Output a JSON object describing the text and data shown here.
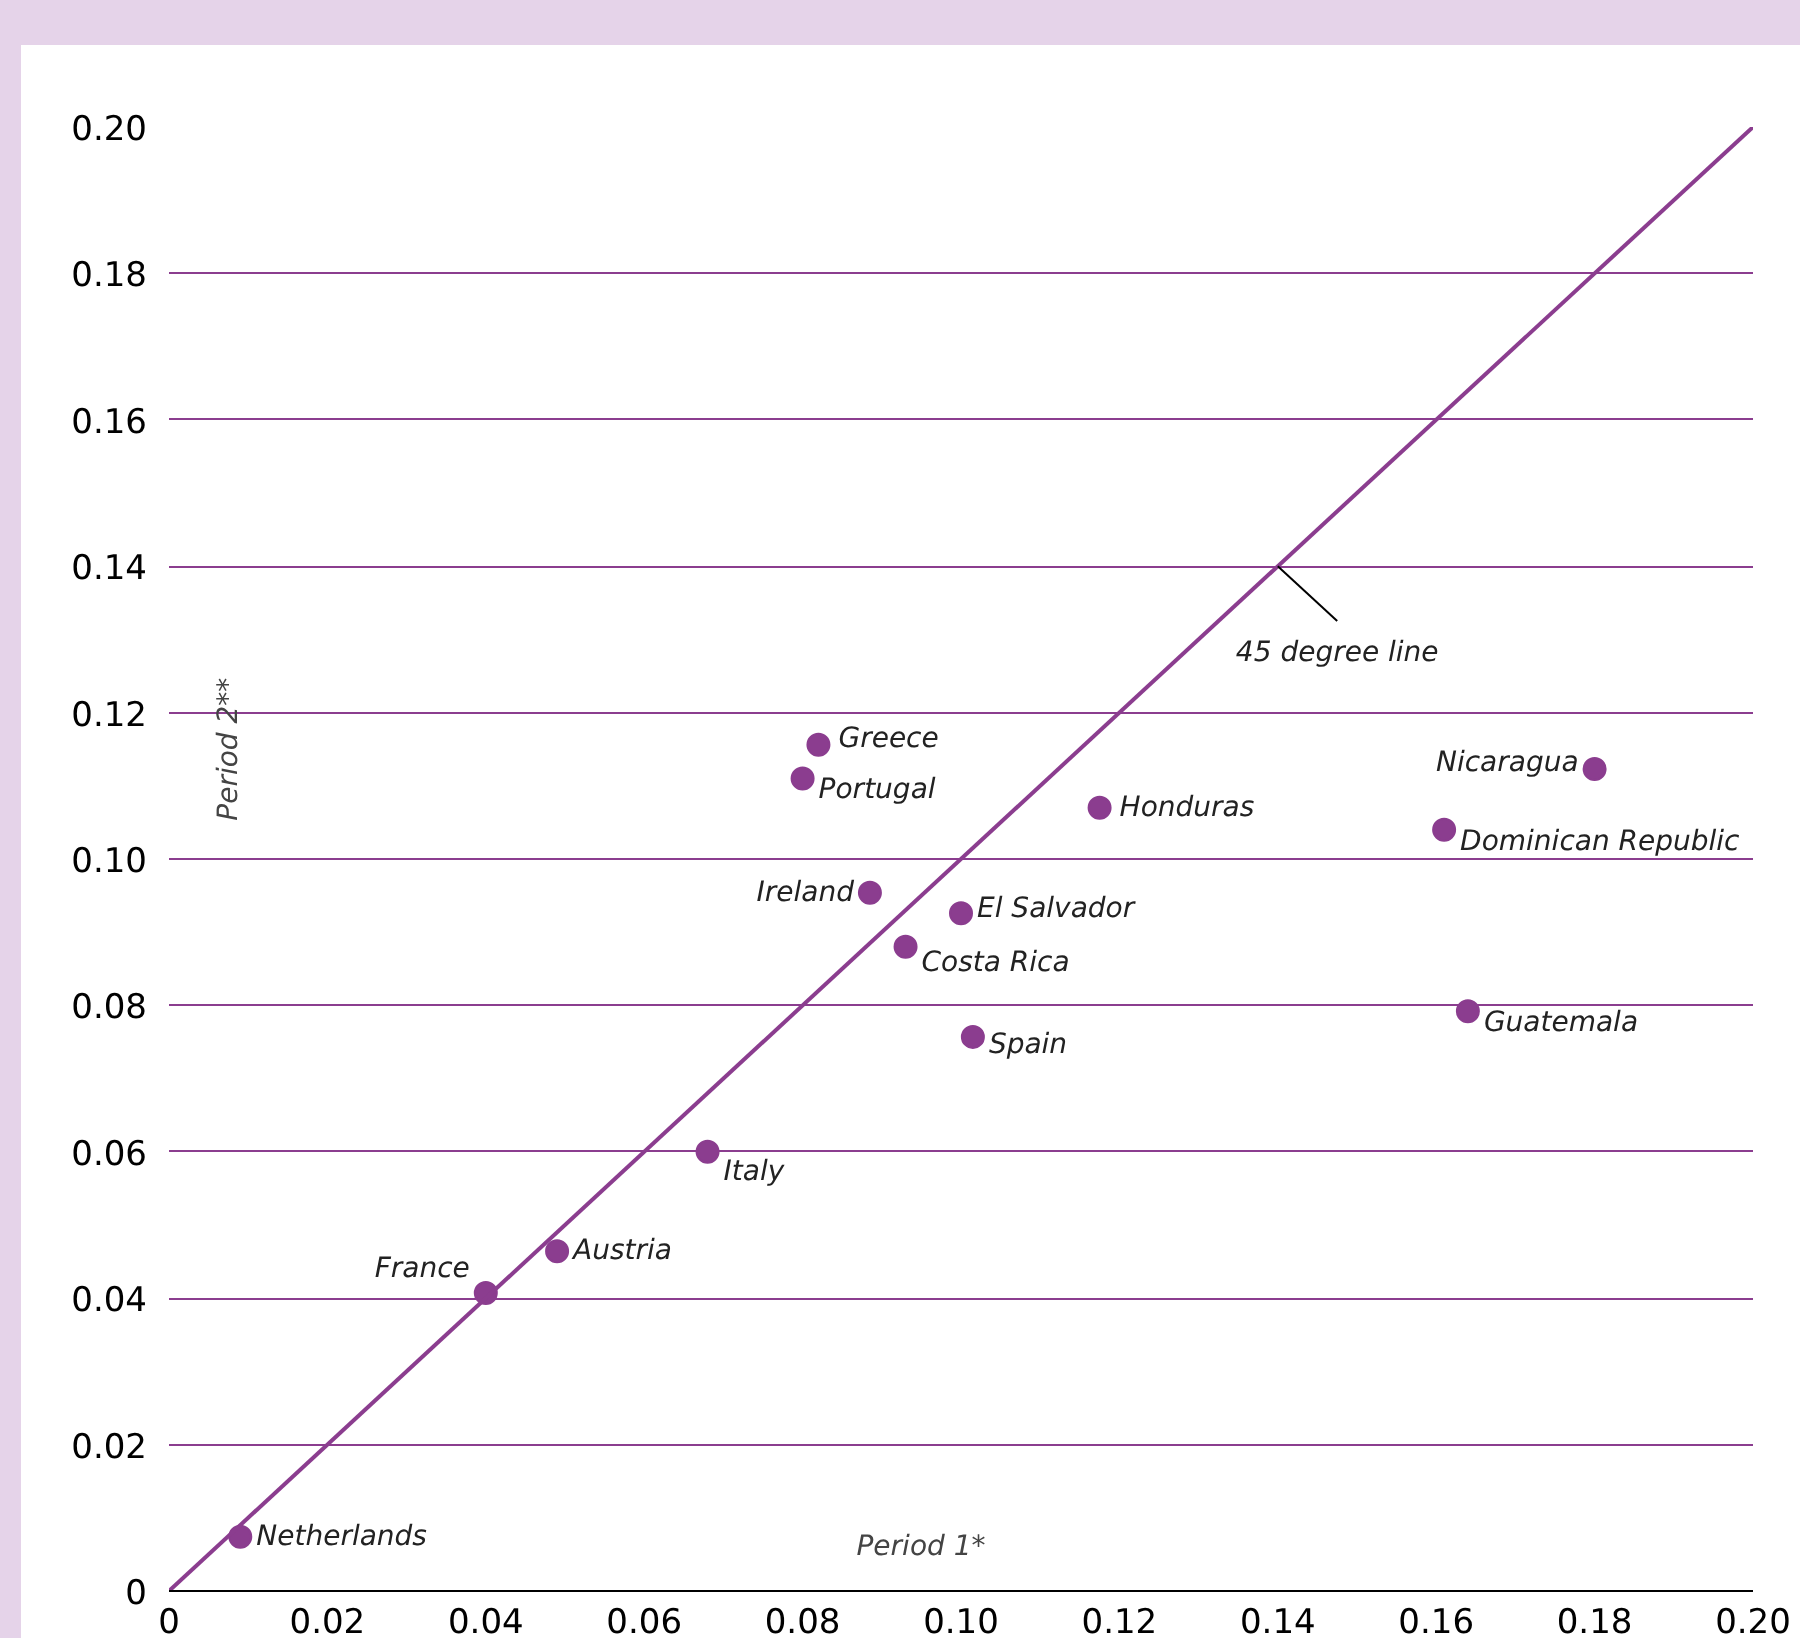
{
  "chart_data": {
    "type": "scatter",
    "xlabel": "Period 1*",
    "ylabel": "Period 2**",
    "x": [
      0.009,
      0.04,
      0.049,
      0.068,
      0.1015,
      0.093,
      0.1,
      0.0885,
      0.08,
      0.082,
      0.1175,
      0.18,
      0.161,
      0.164
    ],
    "series": [
      {
        "color": "#8b3d8f",
        "values": [
          0.0074,
          0.0407,
          0.0464,
          0.06,
          0.0757,
          0.088,
          0.0926,
          0.0954,
          0.111,
          0.1156,
          0.107,
          0.1123,
          0.104,
          0.0792
        ]
      },
      {
        "type": "line",
        "color": "#8b3d8f",
        "marker": "none",
        "x": [
          0,
          0.2
        ],
        "values": [
          0,
          0.2
        ]
      }
    ],
    "annotations": [
      {
        "text": "Netherlands",
        "x": 0.009,
        "y": 0.0074
      },
      {
        "text": "France",
        "x": 0.04,
        "y": 0.0407
      },
      {
        "text": "Austria",
        "x": 0.049,
        "y": 0.0464
      },
      {
        "text": "Italy",
        "x": 0.068,
        "y": 0.06
      },
      {
        "text": "Spain",
        "x": 0.1015,
        "y": 0.0757
      },
      {
        "text": "Costa Rica",
        "x": 0.093,
        "y": 0.088
      },
      {
        "text": "El Salvador",
        "x": 0.1,
        "y": 0.0926
      },
      {
        "text": "Ireland",
        "x": 0.0885,
        "y": 0.0954
      },
      {
        "text": "Portugal",
        "x": 0.08,
        "y": 0.111
      },
      {
        "text": "Greece",
        "x": 0.082,
        "y": 0.1156
      },
      {
        "text": "Honduras",
        "x": 0.1175,
        "y": 0.107
      },
      {
        "text": "Nicaragua",
        "x": 0.18,
        "y": 0.1123
      },
      {
        "text": "Dominican Republic",
        "x": 0.161,
        "y": 0.104
      },
      {
        "text": "Guatemala",
        "x": 0.164,
        "y": 0.0792
      },
      {
        "text": "45 degree line",
        "x": 0.14,
        "y": 0.14
      }
    ],
    "xlim": [
      0,
      0.2
    ],
    "ylim": [
      0,
      0.2
    ],
    "xticks": [
      0,
      {
        "value": 0.02,
        "label": "0.02"
      },
      {
        "value": 0.04,
        "label": "0.04"
      },
      {
        "value": 0.06,
        "label": "0.06"
      },
      {
        "value": 0.08,
        "label": "0.08"
      },
      {
        "value": 0.1,
        "label": "0.10"
      },
      {
        "value": 0.12,
        "label": "0.12"
      },
      {
        "value": 0.14,
        "label": "0.14"
      },
      {
        "value": 0.16,
        "label": "0.16"
      },
      {
        "value": 0.18,
        "label": "0.18"
      },
      {
        "value": 0.2,
        "label": "0.20"
      }
    ],
    "yticks": [
      0,
      {
        "value": 0.02,
        "label": "0.02"
      },
      {
        "value": 0.04,
        "label": "0.04"
      },
      {
        "value": 0.06,
        "label": "0.06"
      },
      {
        "value": 0.08,
        "label": "0.08"
      },
      {
        "value": 0.1,
        "label": "0.10"
      },
      {
        "value": 0.12,
        "label": "0.12"
      },
      {
        "value": 0.14,
        "label": "0.14"
      },
      {
        "value": 0.16,
        "label": "0.16"
      },
      {
        "value": 0.18,
        "label": "0.18"
      },
      {
        "value": 0.2,
        "label": "0.20"
      }
    ],
    "grid": "y",
    "marker": "circle"
  }
}
